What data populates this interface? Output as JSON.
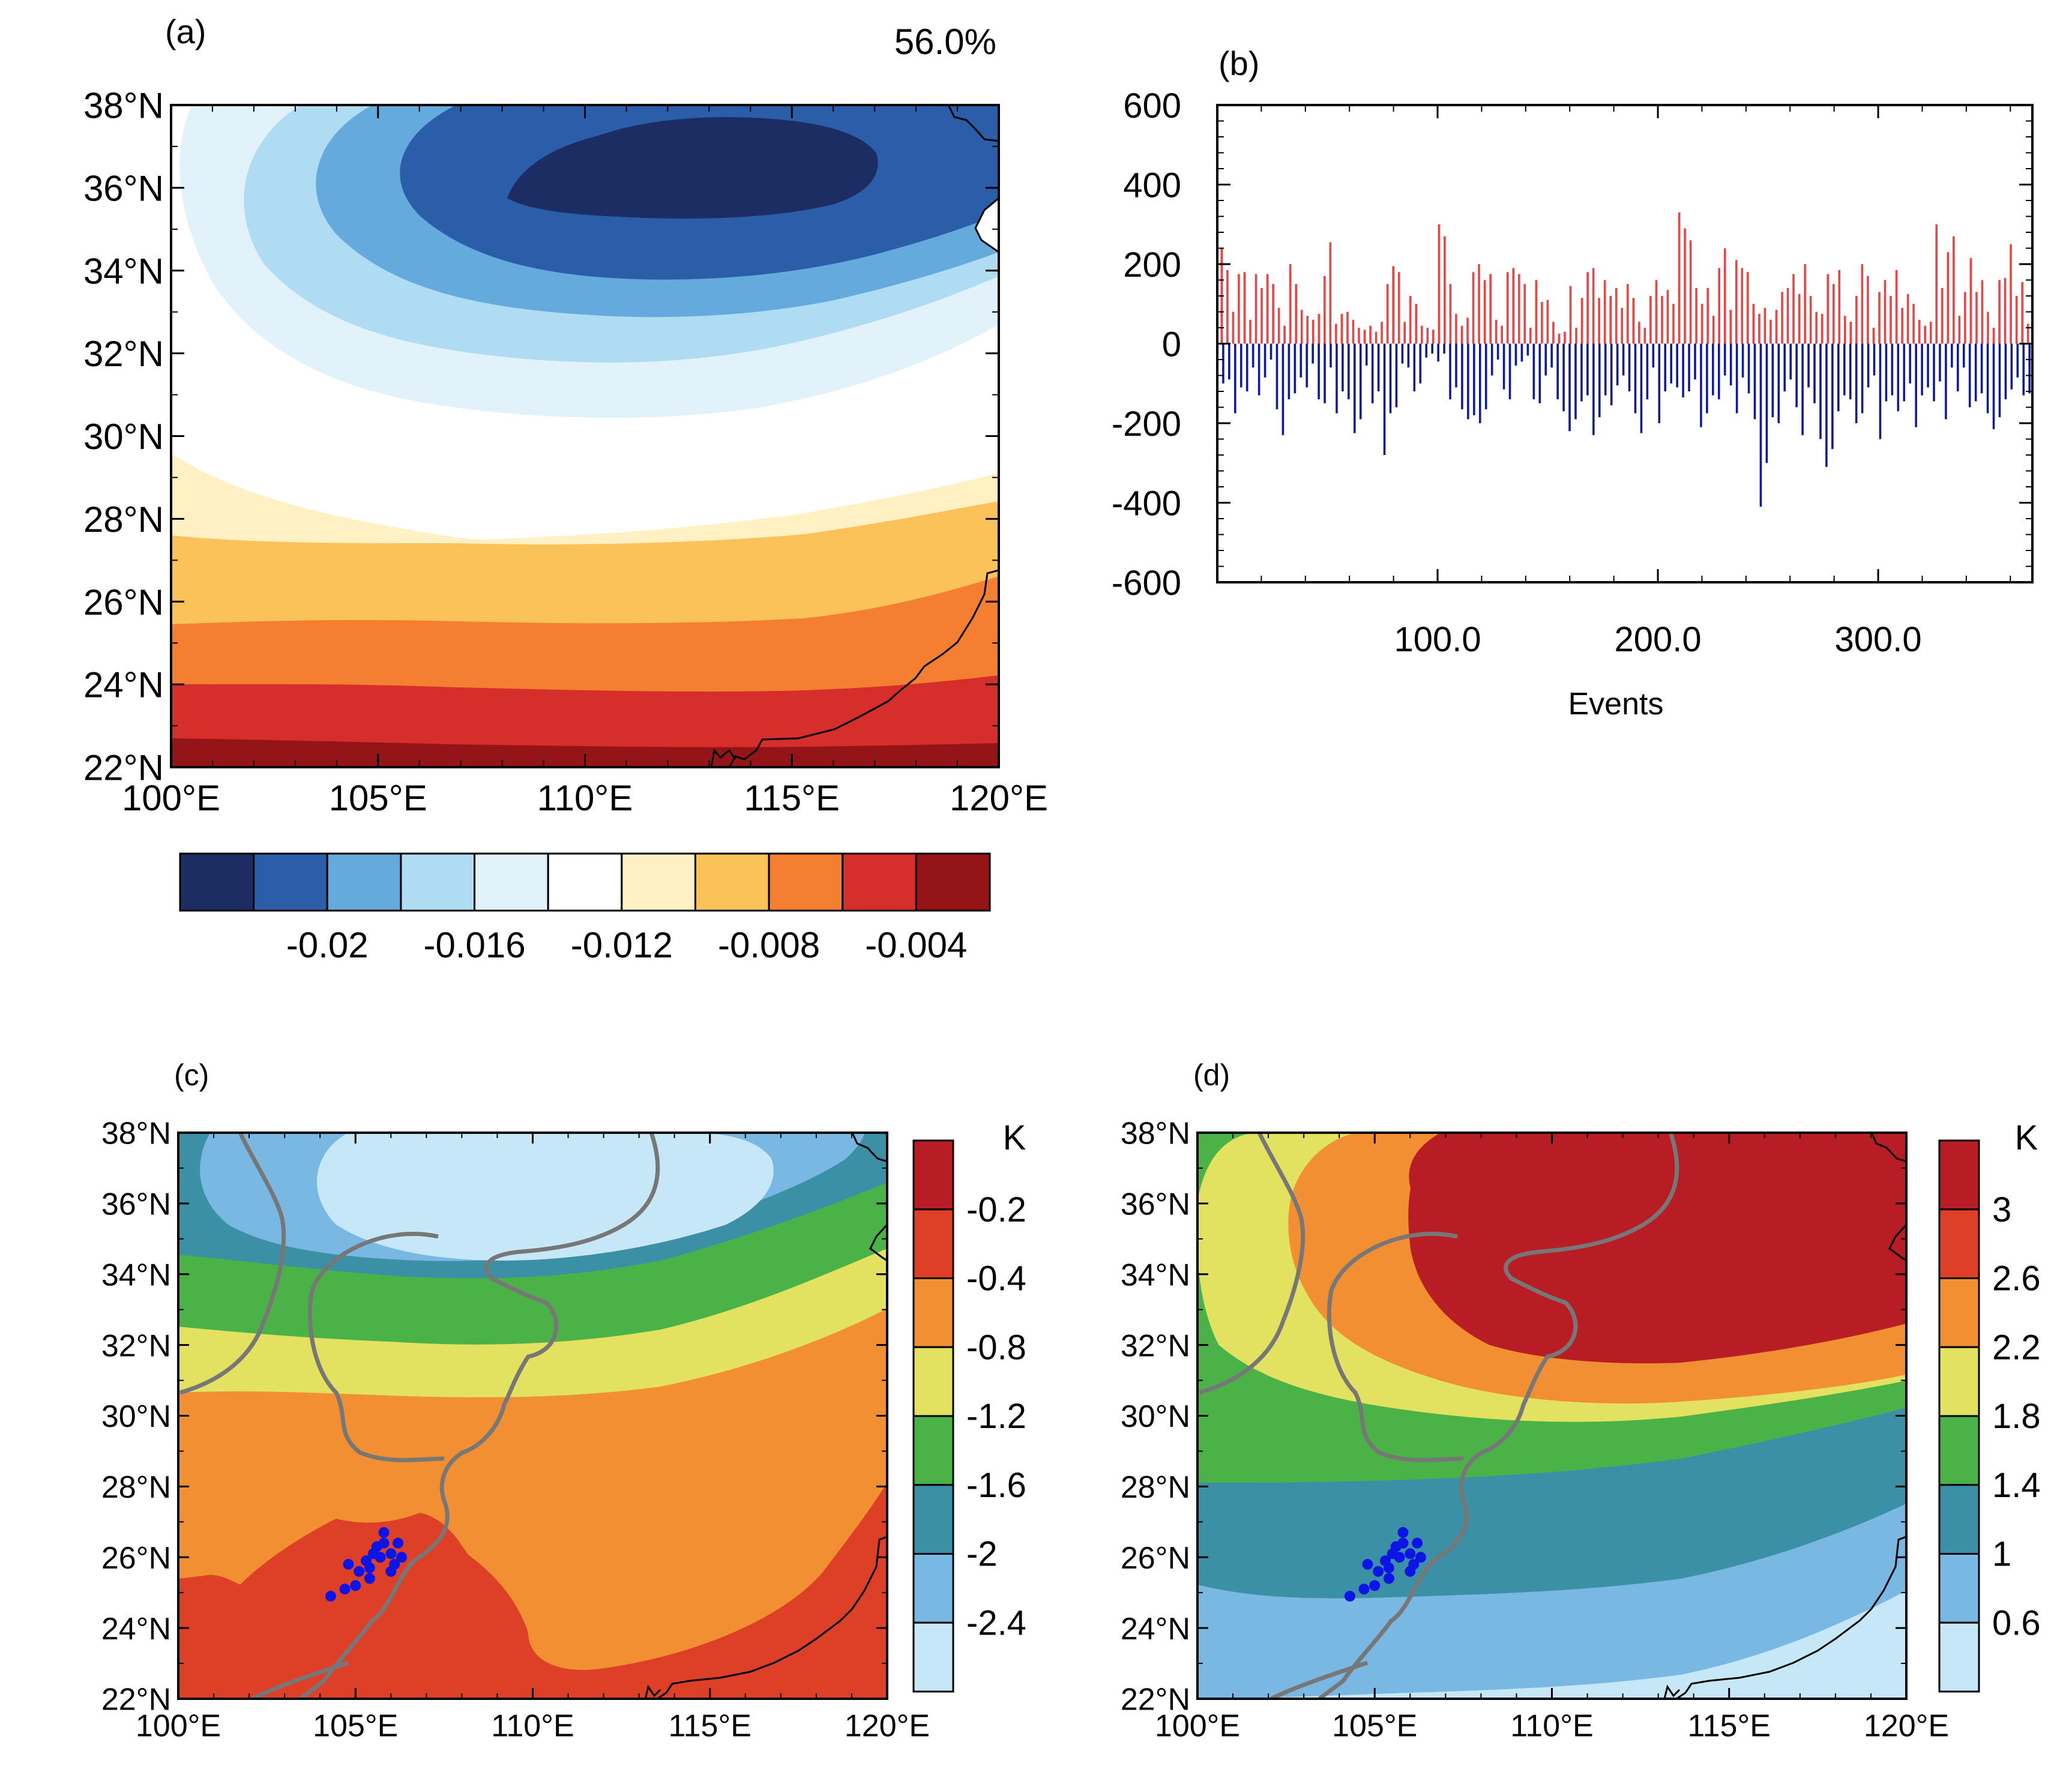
{
  "colors": {
    "panel_a_scale": [
      "#1c2d63",
      "#2a5ea9",
      "#64aadc",
      "#b0dcf3",
      "#e2f2fb",
      "#ffffff",
      "#fff1c4",
      "#fcc25a",
      "#f57f30",
      "#d62e2a",
      "#951417"
    ],
    "panel_cd_scale": [
      "#c6e8f6",
      "#78b8e2",
      "#3c90a6",
      "#4bb248",
      "#e2e160",
      "#f28f33",
      "#dd3f27",
      "#b71d23"
    ],
    "bar_positive": "#ea4444",
    "bar_negative": "#12199a",
    "station_marker": "#0d14e6",
    "coastline": "#000000",
    "river": "#777777"
  },
  "chart_data": [
    {
      "id": "a",
      "type": "heatmap",
      "panel_label": "(a)",
      "annotation": "56.0%",
      "x_ticks": [
        "100°E",
        "105°E",
        "110°E",
        "115°E",
        "120°E"
      ],
      "y_ticks": [
        "38°N",
        "36°N",
        "34°N",
        "32°N",
        "30°N",
        "28°N",
        "26°N",
        "24°N",
        "22°N"
      ],
      "xlim": [
        100,
        120
      ],
      "ylim": [
        22,
        38
      ],
      "colorbar": {
        "orientation": "horizontal",
        "levels": [
          "-0.02",
          "-0.016",
          "-0.012",
          "-0.008",
          "-0.004"
        ]
      },
      "field_min_region": {
        "lon": 111,
        "lat": 36.3,
        "description_value": "< -0.022"
      },
      "field_max_region": {
        "lat": 22.5,
        "description_value": "> -0.002"
      }
    },
    {
      "id": "b",
      "type": "bar",
      "panel_label": "(b)",
      "xlabel": "Events",
      "x_ticks": [
        "100.0",
        "200.0",
        "300.0"
      ],
      "y_ticks": [
        "600",
        "400",
        "200",
        "0",
        "-200",
        "-400",
        "-600"
      ],
      "xlim": [
        0,
        370
      ],
      "ylim": [
        -600,
        600
      ],
      "series": [
        {
          "name": "positive",
          "values": [
            240,
            185,
            80,
            175,
            180,
            60,
            175,
            140,
            175,
            150,
            90,
            45,
            200,
            150,
            85,
            70,
            60,
            75,
            170,
            255,
            50,
            75,
            80,
            60,
            40,
            35,
            45,
            30,
            55,
            150,
            195,
            180,
            55,
            120,
            100,
            45,
            40,
            35,
            300,
            270,
            150,
            75,
            45,
            65,
            180,
            200,
            160,
            175,
            60,
            45,
            180,
            190,
            175,
            150,
            40,
            160,
            105,
            110,
            55,
            25,
            30,
            145,
            40,
            115,
            180,
            190,
            115,
            160,
            120,
            140,
            90,
            150,
            115,
            55,
            40,
            120,
            160,
            120,
            135,
            100,
            330,
            290,
            260,
            140,
            100,
            140,
            70,
            190,
            240,
            85,
            210,
            190,
            180,
            100,
            75,
            90,
            60,
            85,
            130,
            140,
            175,
            125,
            200,
            120,
            80,
            75,
            175,
            150,
            185,
            70,
            55,
            120,
            200,
            170,
            40,
            130,
            160,
            120,
            185,
            90,
            125,
            100,
            60,
            45,
            55,
            300,
            140,
            230,
            270,
            70,
            130,
            215,
            130,
            160,
            80,
            40,
            160,
            165,
            250,
            120,
            155,
            50
          ]
        },
        {
          "name": "negative",
          "values": [
            -100,
            -90,
            -175,
            -110,
            -120,
            -60,
            -130,
            -85,
            -40,
            -165,
            -230,
            -140,
            -125,
            -85,
            -110,
            -50,
            -140,
            -150,
            -60,
            -175,
            -120,
            -140,
            -225,
            -190,
            -55,
            -150,
            -120,
            -280,
            -175,
            -160,
            -50,
            -60,
            -120,
            -100,
            -35,
            -25,
            -45,
            -25,
            -140,
            -110,
            -165,
            -190,
            -180,
            -200,
            -165,
            -80,
            -40,
            -115,
            -140,
            -55,
            -45,
            -30,
            -140,
            -150,
            -80,
            -60,
            -140,
            -170,
            -220,
            -190,
            -145,
            -130,
            -230,
            -185,
            -130,
            -155,
            -105,
            -80,
            -120,
            -175,
            -225,
            -140,
            -60,
            -200,
            -120,
            -100,
            -110,
            -135,
            -120,
            -90,
            -210,
            -175,
            -130,
            -140,
            -80,
            -105,
            -175,
            -85,
            -125,
            -190,
            -410,
            -300,
            -185,
            -200,
            -120,
            -90,
            -160,
            -230,
            -110,
            -150,
            -240,
            -310,
            -265,
            -170,
            -130,
            -140,
            -200,
            -175,
            -110,
            -80,
            -240,
            -145,
            -130,
            -170,
            -145,
            -100,
            -210,
            -130,
            -110,
            -145,
            -95,
            -190,
            -60,
            -120,
            -60,
            -160,
            -145,
            -125,
            -175,
            -215,
            -185,
            -140,
            -115,
            -85,
            -130,
            -125
          ]
        }
      ]
    },
    {
      "id": "c",
      "type": "heatmap",
      "panel_label": "(c)",
      "x_ticks": [
        "100°E",
        "105°E",
        "110°E",
        "115°E",
        "120°E"
      ],
      "y_ticks": [
        "38°N",
        "36°N",
        "34°N",
        "32°N",
        "30°N",
        "28°N",
        "26°N",
        "24°N",
        "22°N"
      ],
      "xlim": [
        100,
        120
      ],
      "ylim": [
        22,
        38
      ],
      "colorbar": {
        "orientation": "vertical",
        "unit": "K",
        "levels": [
          "-0.2",
          "-0.4",
          "-0.8",
          "-1.2",
          "-1.6",
          "-2",
          "-2.4"
        ]
      },
      "stations": [
        [
          104.3,
          24.9
        ],
        [
          104.7,
          25.1
        ],
        [
          105.0,
          25.2
        ],
        [
          105.4,
          25.4
        ],
        [
          104.8,
          25.8
        ],
        [
          105.1,
          25.6
        ],
        [
          105.3,
          25.9
        ],
        [
          105.5,
          26.1
        ],
        [
          105.6,
          26.3
        ],
        [
          105.7,
          26.0
        ],
        [
          105.8,
          26.4
        ],
        [
          106.0,
          26.1
        ],
        [
          106.1,
          25.8
        ],
        [
          106.3,
          26.0
        ],
        [
          106.2,
          26.4
        ],
        [
          105.8,
          26.7
        ],
        [
          105.4,
          25.7
        ],
        [
          106.0,
          25.6
        ]
      ]
    },
    {
      "id": "d",
      "type": "heatmap",
      "panel_label": "(d)",
      "x_ticks": [
        "100°E",
        "105°E",
        "110°E",
        "115°E",
        "120°E"
      ],
      "y_ticks": [
        "38°N",
        "36°N",
        "34°N",
        "32°N",
        "30°N",
        "28°N",
        "26°N",
        "24°N",
        "22°N"
      ],
      "xlim": [
        100,
        120
      ],
      "ylim": [
        22,
        38
      ],
      "colorbar": {
        "orientation": "vertical",
        "unit": "K",
        "levels": [
          "3",
          "2.6",
          "2.2",
          "1.8",
          "1.4",
          "1",
          "0.6"
        ]
      },
      "stations": [
        [
          104.3,
          24.9
        ],
        [
          104.7,
          25.1
        ],
        [
          105.0,
          25.2
        ],
        [
          105.4,
          25.4
        ],
        [
          104.8,
          25.8
        ],
        [
          105.1,
          25.6
        ],
        [
          105.3,
          25.9
        ],
        [
          105.5,
          26.1
        ],
        [
          105.6,
          26.3
        ],
        [
          105.7,
          26.0
        ],
        [
          105.8,
          26.4
        ],
        [
          106.0,
          26.1
        ],
        [
          106.1,
          25.8
        ],
        [
          106.3,
          26.0
        ],
        [
          106.2,
          26.4
        ],
        [
          105.8,
          26.7
        ],
        [
          105.4,
          25.7
        ],
        [
          106.0,
          25.6
        ]
      ]
    }
  ]
}
